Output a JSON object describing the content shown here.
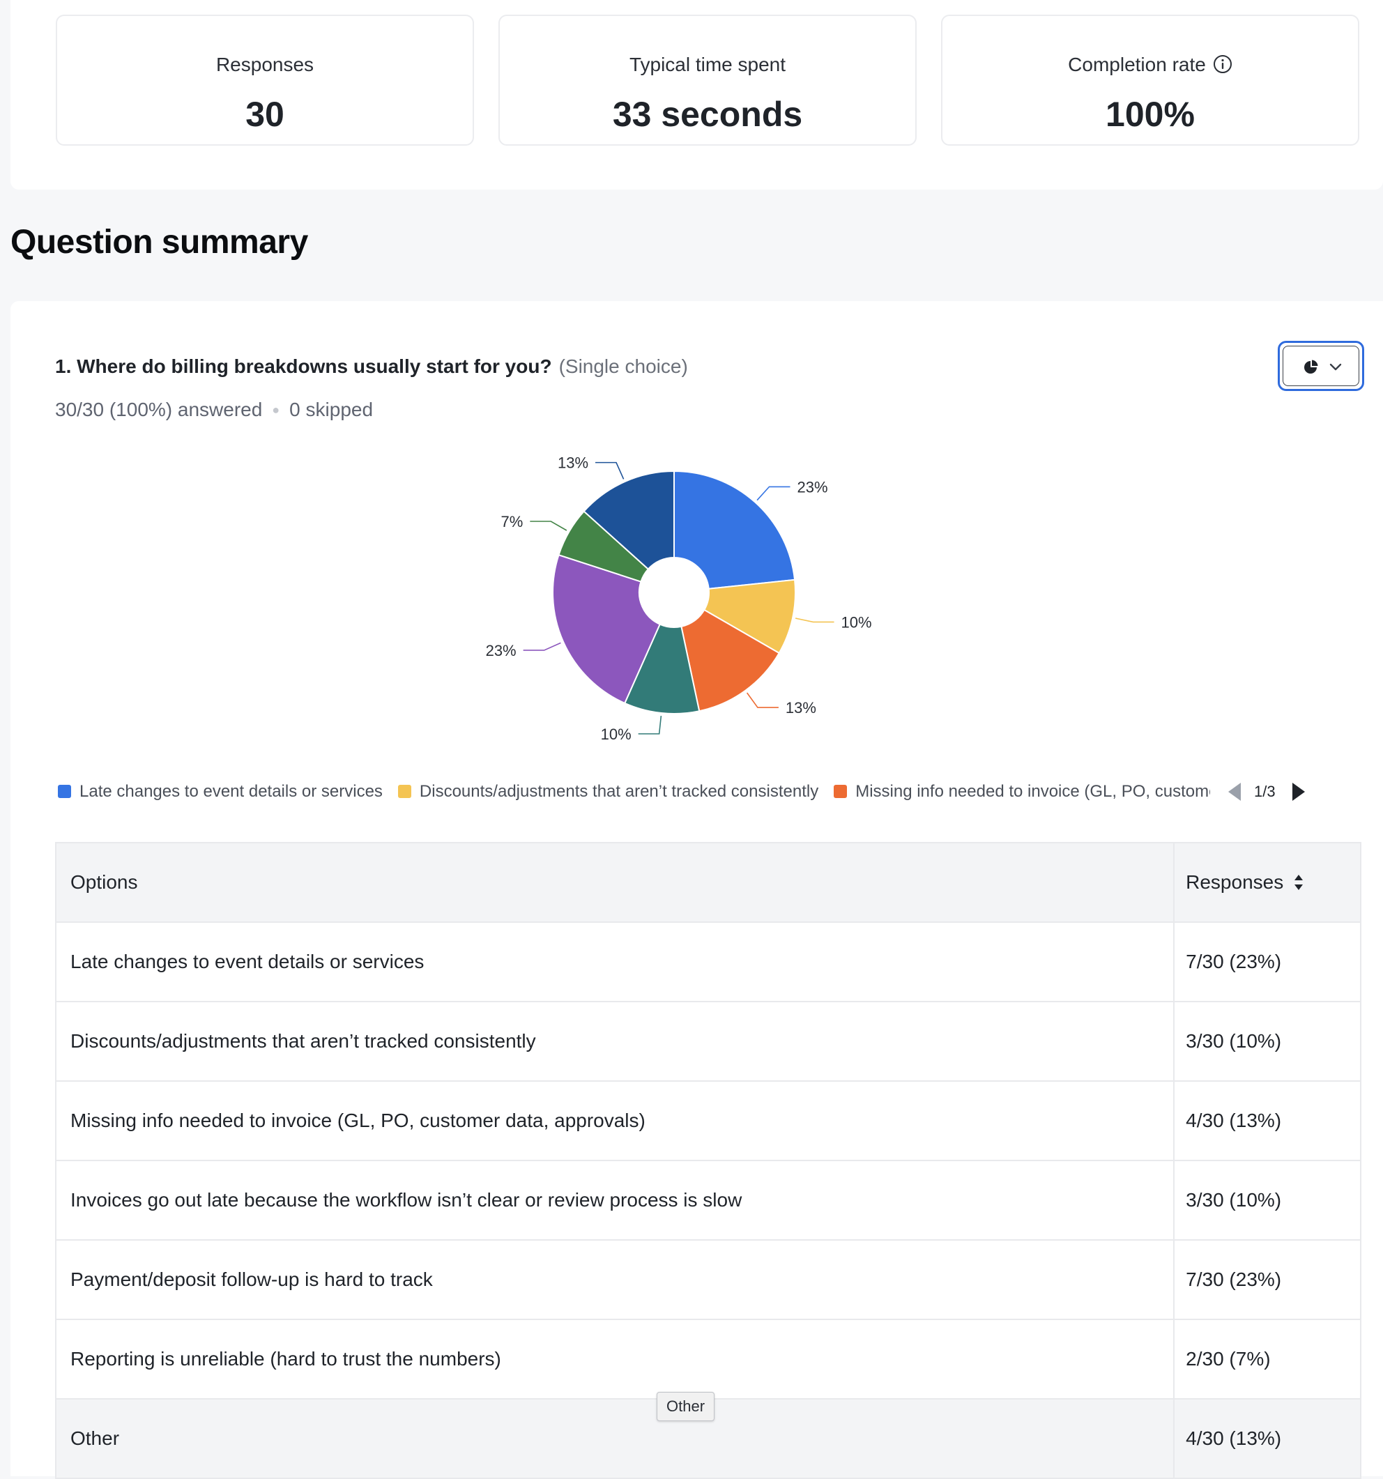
{
  "stats": {
    "responses": {
      "label": "Responses",
      "value": "30"
    },
    "typical_time": {
      "label": "Typical time spent",
      "value": "33 seconds"
    },
    "completion": {
      "label": "Completion rate",
      "value": "100%"
    }
  },
  "section_title": "Question summary",
  "question": {
    "title": "1. Where do billing breakdowns usually start for you?",
    "type": "(Single choice)",
    "answered": "30/30 (100%) answered",
    "skipped": "0 skipped"
  },
  "chart_data": {
    "type": "pie",
    "donut": true,
    "categories": [
      "Late changes to event details or services",
      "Discounts/adjustments that aren’t tracked consistently",
      "Missing info needed to invoice (GL, PO, customer data, approvals)",
      "Invoices go out late because the workflow isn’t clear or review process is slow",
      "Payment/deposit follow-up is hard to track",
      "Reporting is unreliable (hard to trust the numbers)",
      "Other"
    ],
    "values": [
      7,
      3,
      4,
      3,
      7,
      2,
      4
    ],
    "data_labels": [
      "23%",
      "10%",
      "13%",
      "10%",
      "23%",
      "7%",
      "13%"
    ],
    "colors": [
      "#3574e3",
      "#f4c453",
      "#ed6b32",
      "#327b78",
      "#8c57bd",
      "#438447",
      "#1d5298"
    ],
    "legend_placement": "bottom",
    "legend_visible": [
      "Late changes to event details or services",
      "Discounts/adjustments that aren’t tracked consistently",
      "Missing info needed to invoice (GL, PO, customer data, approvals)"
    ],
    "legend_page": "1/3"
  },
  "table": {
    "headers": {
      "options": "Options",
      "responses": "Responses"
    },
    "rows": [
      {
        "option": "Late changes to event details or services",
        "responses": "7/30 (23%)"
      },
      {
        "option": "Discounts/adjustments that aren’t tracked consistently",
        "responses": "3/30 (10%)"
      },
      {
        "option": "Missing info needed to invoice (GL, PO, customer data, approvals)",
        "responses": "4/30 (13%)"
      },
      {
        "option": "Invoices go out late because the workflow isn’t clear or review process is slow",
        "responses": "3/30 (10%)"
      },
      {
        "option": "Payment/deposit follow-up is hard to track",
        "responses": "7/30 (23%)"
      },
      {
        "option": "Reporting is unreliable (hard to trust the numbers)",
        "responses": "2/30 (7%)"
      },
      {
        "option": "Other",
        "responses": "4/30 (13%)"
      }
    ]
  },
  "tooltip": "Other",
  "icons": {
    "info": "info-icon",
    "chart_type": "pie-chart-icon",
    "dropdown": "chevron-down-icon",
    "sort": "sort-icon"
  }
}
